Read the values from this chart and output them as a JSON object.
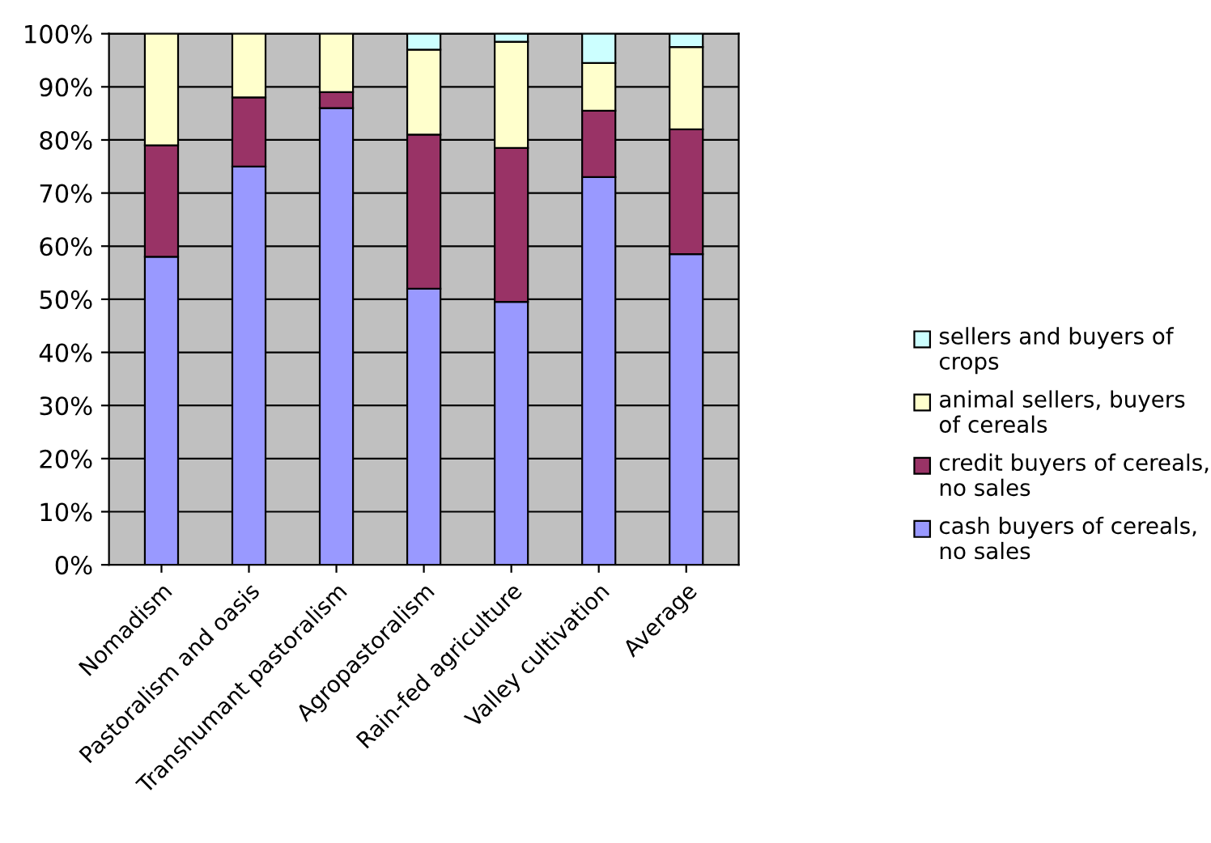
{
  "chart_data": {
    "type": "bar",
    "stacked": true,
    "categories": [
      "Nomadism",
      "Pastoralism and oasis",
      "Transhumant pastoralism",
      "Agropastoralism",
      "Rain-fed agriculture",
      "Valley cultivation",
      "Average"
    ],
    "series": [
      {
        "name": "cash buyers of cereals, no sales",
        "color": "#9999ff",
        "values": [
          58,
          75,
          86,
          52,
          49.5,
          73,
          58.5
        ]
      },
      {
        "name": "credit buyers of cereals, no sales",
        "color": "#993366",
        "values": [
          21,
          13,
          3,
          29,
          29,
          12.5,
          23.5
        ]
      },
      {
        "name": "animal sellers, buyers of cereals",
        "color": "#ffffcc",
        "values": [
          21,
          12,
          11,
          16,
          20,
          9,
          15.5
        ]
      },
      {
        "name": "sellers and buyers of crops",
        "color": "#ccffff",
        "values": [
          0,
          0,
          0,
          3,
          1.5,
          5.5,
          2.5
        ]
      }
    ],
    "ylim": [
      0,
      100
    ],
    "yticks": [
      {
        "value": 0,
        "label": "0%"
      },
      {
        "value": 10,
        "label": "10%"
      },
      {
        "value": 20,
        "label": "20%"
      },
      {
        "value": 30,
        "label": "30%"
      },
      {
        "value": 40,
        "label": "40%"
      },
      {
        "value": 50,
        "label": "50%"
      },
      {
        "value": 60,
        "label": "60%"
      },
      {
        "value": 70,
        "label": "70%"
      },
      {
        "value": 80,
        "label": "80%"
      },
      {
        "value": 90,
        "label": "90%"
      },
      {
        "value": 100,
        "label": "100%"
      }
    ],
    "grid": "y",
    "legend": "right"
  }
}
